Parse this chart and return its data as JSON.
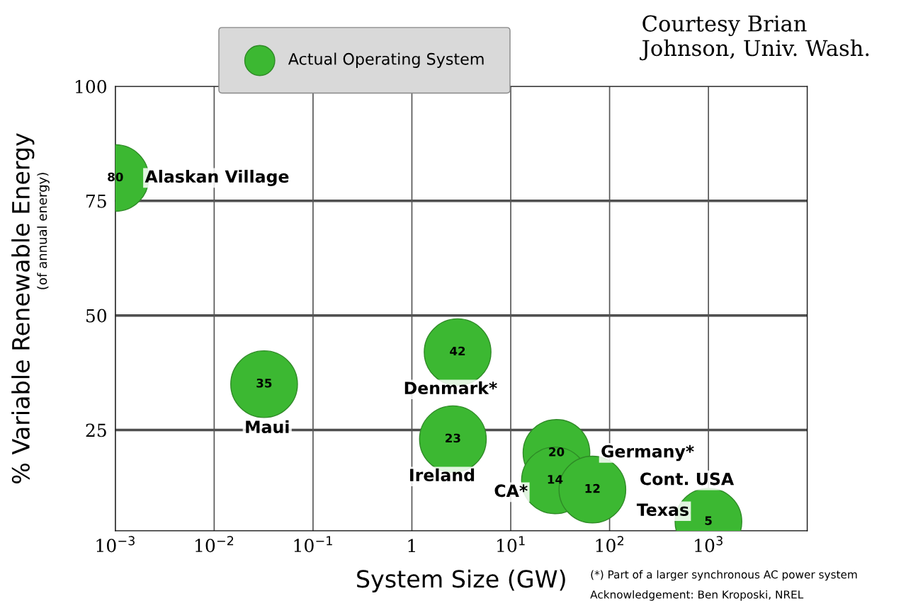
{
  "chart_data": {
    "type": "scatter",
    "xlabel": "System Size (GW)",
    "ylabel": "% Variable Renewable Energy",
    "log": "x",
    "xlim": [
      0.001,
      10000
    ],
    "ylim": [
      3,
      100
    ],
    "xticks": [
      {
        "value": 0.001,
        "label": "10$^{−3}$"
      },
      {
        "value": 0.01,
        "label": "10$^{−2}$"
      },
      {
        "value": 0.1,
        "label": "10$^{−1}$"
      },
      1,
      {
        "value": 10,
        "label": "10$^{1}$"
      },
      {
        "value": 100,
        "label": "10$^{2}$"
      },
      {
        "value": 1000,
        "label": "10$^{3}$"
      },
      {
        "value": 10000,
        "label": null
      }
    ],
    "yticks": [
      25,
      50,
      75,
      100
    ],
    "grid": true,
    "legend": "top",
    "marker": "circle",
    "data_labels": true,
    "series": [
      {
        "name": "Actual Operating System",
        "color": "#3cb832",
        "x": [
          0.001,
          0.032,
          2.9,
          2.6,
          29,
          28,
          67,
          1000
        ],
        "values": [
          80,
          35,
          42,
          23,
          20,
          14,
          12,
          5
        ]
      }
    ],
    "annotations": [
      "Courtesy Brian Johnson, Univ. Wash.",
      "(of annual energy)",
      "(*) Part of a larger synchronous AC power system",
      "Acknowledgement: Ben Kroposki, NREL",
      {
        "text": "Alaskan Village",
        "x": 0.001,
        "y": 80
      },
      {
        "text": "Maui",
        "x": 0.032,
        "y": 35
      },
      {
        "text": "Denmark*",
        "x": 2.9,
        "y": 42
      },
      {
        "text": "Ireland",
        "x": 2.6,
        "y": 23
      },
      {
        "text": "Germany*",
        "x": 29,
        "y": 20
      },
      {
        "text": "CA*",
        "x": 28,
        "y": 14
      },
      {
        "text": "Texas",
        "x": 67,
        "y": 12
      },
      {
        "text": "Cont. USA",
        "x": 1000,
        "y": 5
      }
    ]
  }
}
